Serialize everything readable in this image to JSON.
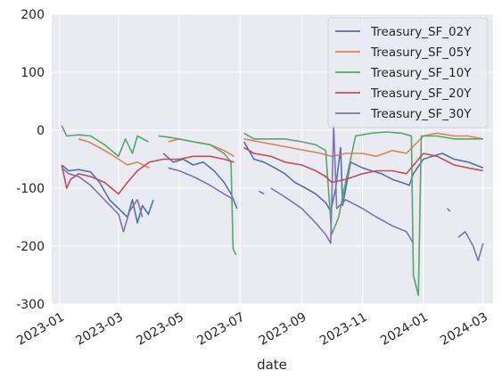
{
  "chart_data": {
    "type": "line",
    "title": "",
    "xlabel": "date",
    "ylabel": "",
    "ylim": [
      -300,
      200
    ],
    "xlim": [
      "2022-12-24",
      "2024-03-11"
    ],
    "yticks": [
      -300,
      -200,
      -100,
      0,
      100,
      200
    ],
    "xticks": [
      "2023-01",
      "2023-03",
      "2023-05",
      "2023-07",
      "2023-09",
      "2023-11",
      "2024-01",
      "2024-03"
    ],
    "grid": true,
    "legend": "top-right",
    "series": [
      {
        "name": "Treasury_SF_02Y",
        "color": "#4c72b0",
        "points": [
          [
            "2023-01-03",
            -60
          ],
          [
            "2023-01-10",
            -70
          ],
          [
            "2023-01-20",
            -68
          ],
          [
            "2023-02-01",
            -72
          ],
          [
            "2023-02-10",
            -90
          ],
          [
            "2023-02-20",
            -120
          ],
          [
            "2023-03-01",
            -135
          ],
          [
            "2023-03-10",
            -150
          ],
          [
            "2023-03-15",
            -120
          ],
          [
            "2023-03-20",
            -160
          ],
          [
            "2023-03-25",
            -130
          ],
          [
            "2023-03-31",
            -145
          ],
          [
            "2023-04-05",
            -120
          ],
          null,
          [
            "2023-04-15",
            -40
          ],
          [
            "2023-04-25",
            -55
          ],
          [
            "2023-05-05",
            -50
          ],
          [
            "2023-05-15",
            -60
          ],
          [
            "2023-05-25",
            -55
          ],
          [
            "2023-06-05",
            -70
          ],
          [
            "2023-06-15",
            -90
          ],
          [
            "2023-06-22",
            -110
          ],
          [
            "2023-06-28",
            -135
          ],
          null,
          [
            "2023-07-05",
            -20
          ],
          [
            "2023-07-15",
            -50
          ],
          [
            "2023-07-25",
            -55
          ],
          [
            "2023-08-05",
            -65
          ],
          [
            "2023-08-15",
            -75
          ],
          [
            "2023-08-25",
            -90
          ],
          [
            "2023-09-05",
            -100
          ],
          [
            "2023-09-15",
            -110
          ],
          [
            "2023-09-25",
            -125
          ],
          [
            "2023-09-30",
            -140
          ],
          [
            "2023-10-05",
            -100
          ],
          [
            "2023-10-10",
            -30
          ],
          [
            "2023-10-12",
            -130
          ],
          [
            "2023-10-20",
            -55
          ],
          [
            "2023-11-01",
            -65
          ],
          [
            "2023-11-10",
            -70
          ],
          [
            "2023-11-20",
            -75
          ],
          [
            "2023-12-01",
            -85
          ],
          [
            "2023-12-10",
            -90
          ],
          [
            "2023-12-18",
            -95
          ],
          [
            "2023-12-22",
            -75
          ],
          [
            "2024-01-01",
            -50
          ],
          [
            "2024-01-10",
            -45
          ],
          [
            "2024-01-20",
            -40
          ],
          [
            "2024-02-01",
            -50
          ],
          [
            "2024-02-15",
            -55
          ],
          [
            "2024-03-01",
            -65
          ]
        ]
      },
      {
        "name": "Treasury_SF_05Y",
        "color": "#dd8452",
        "points": [
          [
            "2023-01-20",
            -15
          ],
          [
            "2023-01-30",
            -20
          ],
          [
            "2023-02-10",
            -30
          ],
          [
            "2023-02-20",
            -40
          ],
          [
            "2023-03-01",
            -50
          ],
          [
            "2023-03-10",
            -60
          ],
          [
            "2023-03-20",
            -55
          ],
          [
            "2023-04-01",
            -65
          ],
          null,
          [
            "2023-04-20",
            -20
          ],
          [
            "2023-05-01",
            -15
          ],
          [
            "2023-05-15",
            -20
          ],
          [
            "2023-06-01",
            -25
          ],
          [
            "2023-06-15",
            -35
          ],
          [
            "2023-06-25",
            -45
          ],
          null,
          [
            "2023-07-05",
            -15
          ],
          [
            "2023-07-20",
            -20
          ],
          [
            "2023-08-05",
            -25
          ],
          [
            "2023-08-20",
            -30
          ],
          [
            "2023-09-05",
            -35
          ],
          [
            "2023-09-20",
            -40
          ],
          [
            "2023-10-01",
            -45
          ],
          [
            "2023-10-15",
            -40
          ],
          [
            "2023-11-01",
            -40
          ],
          [
            "2023-11-15",
            -45
          ],
          [
            "2023-12-01",
            -35
          ],
          [
            "2023-12-15",
            -40
          ],
          [
            "2024-01-01",
            -10
          ],
          [
            "2024-01-15",
            -5
          ],
          [
            "2024-02-01",
            -10
          ],
          [
            "2024-02-15",
            -10
          ],
          [
            "2024-03-01",
            -15
          ]
        ]
      },
      {
        "name": "Treasury_SF_10Y",
        "color": "#55a868",
        "points": [
          [
            "2023-01-03",
            8
          ],
          [
            "2023-01-08",
            -10
          ],
          [
            "2023-01-20",
            -8
          ],
          [
            "2023-02-01",
            -10
          ],
          [
            "2023-02-15",
            -25
          ],
          [
            "2023-03-01",
            -45
          ],
          [
            "2023-03-08",
            -15
          ],
          [
            "2023-03-15",
            -40
          ],
          [
            "2023-03-20",
            -10
          ],
          [
            "2023-03-31",
            -20
          ],
          null,
          [
            "2023-04-10",
            -10
          ],
          [
            "2023-04-20",
            -12
          ],
          [
            "2023-05-01",
            -15
          ],
          [
            "2023-05-15",
            -20
          ],
          [
            "2023-06-01",
            -25
          ],
          [
            "2023-06-15",
            -40
          ],
          [
            "2023-06-22",
            -55
          ],
          [
            "2023-06-24",
            -205
          ],
          [
            "2023-06-27",
            -215
          ],
          null,
          [
            "2023-07-05",
            -5
          ],
          [
            "2023-07-15",
            -15
          ],
          [
            "2023-08-01",
            -15
          ],
          [
            "2023-08-15",
            -15
          ],
          [
            "2023-09-01",
            -20
          ],
          [
            "2023-09-15",
            -25
          ],
          [
            "2023-09-25",
            -35
          ],
          [
            "2023-10-01",
            -180
          ],
          [
            "2023-10-08",
            -150
          ],
          [
            "2023-10-15",
            -90
          ],
          [
            "2023-10-25",
            -10
          ],
          [
            "2023-11-10",
            -5
          ],
          [
            "2023-11-25",
            -3
          ],
          [
            "2023-12-10",
            -5
          ],
          [
            "2023-12-20",
            -10
          ],
          [
            "2023-12-22",
            -250
          ],
          [
            "2023-12-27",
            -285
          ],
          [
            "2023-12-30",
            -10
          ],
          [
            "2024-01-15",
            -10
          ],
          [
            "2024-02-01",
            -15
          ],
          [
            "2024-03-01",
            -15
          ]
        ]
      },
      {
        "name": "Treasury_SF_20Y",
        "color": "#c44e52",
        "points": [
          [
            "2023-01-03",
            -60
          ],
          [
            "2023-01-08",
            -100
          ],
          [
            "2023-01-12",
            -85
          ],
          [
            "2023-01-20",
            -75
          ],
          [
            "2023-02-01",
            -80
          ],
          [
            "2023-02-15",
            -90
          ],
          [
            "2023-03-01",
            -110
          ],
          [
            "2023-03-10",
            -90
          ],
          [
            "2023-03-20",
            -70
          ],
          [
            "2023-04-01",
            -55
          ],
          [
            "2023-04-15",
            -50
          ],
          [
            "2023-05-01",
            -50
          ],
          [
            "2023-05-15",
            -45
          ],
          [
            "2023-06-01",
            -45
          ],
          [
            "2023-06-15",
            -50
          ],
          [
            "2023-06-25",
            -55
          ],
          null,
          [
            "2023-07-05",
            -30
          ],
          [
            "2023-07-15",
            -40
          ],
          [
            "2023-08-01",
            -45
          ],
          [
            "2023-08-15",
            -55
          ],
          [
            "2023-09-01",
            -60
          ],
          [
            "2023-09-15",
            -70
          ],
          [
            "2023-09-25",
            -80
          ],
          [
            "2023-10-01",
            -90
          ],
          [
            "2023-10-15",
            -85
          ],
          [
            "2023-11-01",
            -75
          ],
          [
            "2023-11-15",
            -70
          ],
          [
            "2023-12-01",
            -70
          ],
          [
            "2023-12-15",
            -75
          ],
          [
            "2024-01-01",
            -40
          ],
          [
            "2024-01-15",
            -45
          ],
          [
            "2024-02-01",
            -60
          ],
          [
            "2024-02-15",
            -65
          ],
          [
            "2024-03-01",
            -70
          ]
        ]
      },
      {
        "name": "Treasury_SF_30Y",
        "color": "#8172b3",
        "points": [
          [
            "2023-01-03",
            -65
          ],
          [
            "2023-01-10",
            -75
          ],
          [
            "2023-01-20",
            -80
          ],
          [
            "2023-02-01",
            -95
          ],
          [
            "2023-02-15",
            -120
          ],
          [
            "2023-03-01",
            -145
          ],
          [
            "2023-03-06",
            -175
          ],
          [
            "2023-03-12",
            -140
          ],
          [
            "2023-03-20",
            -120
          ],
          [
            "2023-03-25",
            -150
          ],
          null,
          [
            "2023-04-20",
            -65
          ],
          [
            "2023-05-01",
            -70
          ],
          [
            "2023-05-15",
            -80
          ],
          [
            "2023-06-01",
            -95
          ],
          [
            "2023-06-15",
            -110
          ],
          [
            "2023-06-25",
            -120
          ],
          null,
          [
            "2023-07-20",
            -105
          ],
          [
            "2023-07-25",
            -110
          ],
          null,
          [
            "2023-08-01",
            -100
          ],
          [
            "2023-08-15",
            -115
          ],
          [
            "2023-09-01",
            -135
          ],
          [
            "2023-09-15",
            -160
          ],
          [
            "2023-09-25",
            -180
          ],
          [
            "2023-09-30",
            -195
          ],
          [
            "2023-10-03",
            10
          ],
          [
            "2023-10-06",
            -135
          ],
          [
            "2023-10-15",
            -120
          ],
          [
            "2023-11-01",
            -135
          ],
          [
            "2023-11-15",
            -150
          ],
          [
            "2023-12-01",
            -165
          ],
          [
            "2023-12-15",
            -175
          ],
          [
            "2023-12-22",
            -195
          ],
          null,
          [
            "2024-01-25",
            -135
          ],
          [
            "2024-01-28",
            -140
          ],
          null,
          [
            "2024-02-05",
            -185
          ],
          [
            "2024-02-12",
            -175
          ],
          [
            "2024-02-20",
            -200
          ],
          [
            "2024-02-25",
            -225
          ],
          [
            "2024-03-01",
            -195
          ]
        ]
      }
    ]
  }
}
